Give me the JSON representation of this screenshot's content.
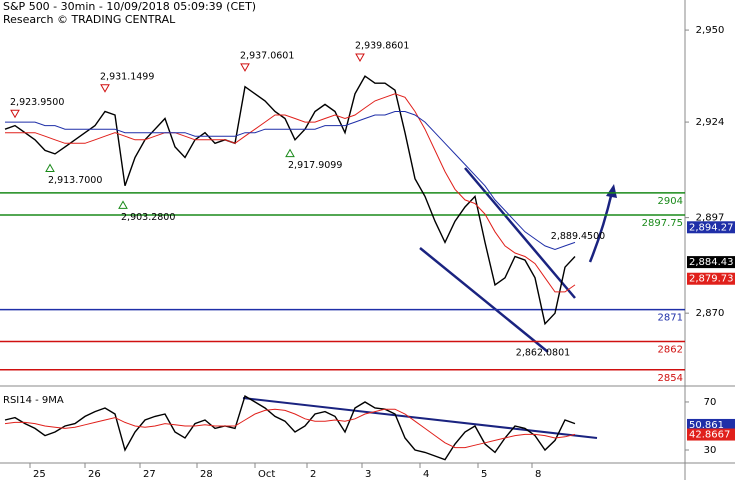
{
  "chart_data": [
    {
      "type": "line",
      "title": "S&P 500 - 30min - 10/09/2018 05:09:39 (CET)",
      "subtitle": "Research © TRADING CENTRAL",
      "x": [
        0,
        1,
        2,
        3,
        4,
        5,
        6,
        7,
        8,
        9,
        10,
        11,
        12,
        13,
        14,
        15,
        16,
        17,
        18,
        19,
        20,
        21,
        22,
        23,
        24,
        25,
        26,
        27,
        28,
        29,
        30,
        31,
        32,
        33,
        34,
        35,
        36,
        37,
        38,
        39,
        40,
        41,
        42,
        43,
        44,
        45,
        46,
        47,
        48,
        49,
        50,
        51,
        52,
        53,
        54,
        55,
        56,
        57
      ],
      "xlim": [
        -0.5,
        68
      ],
      "series": [
        {
          "color": "#000000",
          "values": [
            2922,
            2923,
            2921,
            2919,
            2916,
            2915,
            2917,
            2919,
            2921,
            2923,
            2927,
            2926,
            2906,
            2914,
            2919,
            2922,
            2925,
            2917,
            2914,
            2919,
            2921,
            2918,
            2919,
            2918,
            2934,
            2932,
            2930,
            2927,
            2925,
            2919,
            2922,
            2927,
            2929,
            2927,
            2921,
            2932,
            2937,
            2935,
            2935,
            2933,
            2921,
            2908,
            2903,
            2896,
            2890,
            2896,
            2900,
            2903,
            2890,
            2878,
            2880,
            2886,
            2885,
            2880,
            2867,
            2870,
            2883,
            2886
          ]
        },
        {
          "color": "#e0201b",
          "values": [
            2921,
            2921,
            2921,
            2921,
            2920,
            2919,
            2918,
            2918,
            2918,
            2919,
            2920,
            2921,
            2920,
            2919,
            2919,
            2920,
            2921,
            2921,
            2920,
            2919,
            2919,
            2919,
            2919,
            2918,
            2920,
            2922,
            2924,
            2926,
            2926,
            2925,
            2924,
            2924,
            2925,
            2926,
            2925,
            2926,
            2928,
            2930,
            2931,
            2932,
            2931,
            2927,
            2922,
            2916,
            2910,
            2905,
            2902,
            2901,
            2898,
            2893,
            2889,
            2887,
            2886,
            2884,
            2880,
            2876,
            2876,
            2878
          ]
        },
        {
          "color": "#1f2fa8",
          "values": [
            2924,
            2924,
            2924,
            2924,
            2923,
            2923,
            2922,
            2922,
            2922,
            2922,
            2922,
            2922,
            2921,
            2921,
            2921,
            2921,
            2921,
            2921,
            2921,
            2920,
            2920,
            2920,
            2920,
            2920,
            2921,
            2921,
            2922,
            2922,
            2922,
            2922,
            2922,
            2922,
            2923,
            2923,
            2923,
            2924,
            2925,
            2926,
            2926,
            2927,
            2927,
            2926,
            2924,
            2921,
            2918,
            2915,
            2912,
            2909,
            2906,
            2902,
            2899,
            2896,
            2893,
            2891,
            2889,
            2888,
            2889,
            2890
          ]
        }
      ],
      "ylim": [
        2849.7,
        2958.5
      ],
      "yticks": [
        {
          "value": 2950,
          "label": "2,950"
        },
        {
          "value": 2924,
          "label": "2,924"
        },
        {
          "value": 2897,
          "label": "2,897"
        },
        {
          "value": 2870,
          "label": "2,870"
        }
      ],
      "levels": [
        {
          "value": 2904,
          "color": "#1a8a1a"
        },
        {
          "value": 2897.75,
          "color": "#1a8a1a"
        },
        {
          "value": 2871,
          "color": "#1f2fa8"
        },
        {
          "value": 2862,
          "color": "#d01010"
        },
        {
          "value": 2854,
          "color": "#d01010"
        }
      ],
      "annotations": [
        {
          "x": 1,
          "value": 2923.95,
          "label": "2,923.9500",
          "color": "#d01010"
        },
        {
          "x": 10,
          "value": 2931.1499,
          "label": "2,931.1499",
          "color": "#d01010"
        },
        {
          "x": 24,
          "value": 2937.0601,
          "label": "2,937.0601",
          "color": "#d01010"
        },
        {
          "x": 35.5,
          "value": 2939.8601,
          "label": "2,939.8601",
          "color": "#d01010"
        },
        {
          "x": 4.5,
          "value": 2913.7,
          "label": "2,913.7000",
          "color": "#1a8a1a"
        },
        {
          "x": 11.8,
          "value": 2903.28,
          "label": "2,903.2800",
          "color": "#1a8a1a"
        },
        {
          "x": 28.5,
          "value": 2917.9099,
          "label": "2,917.9099",
          "color": "#1a8a1a"
        },
        {
          "x": 54,
          "value": 2862.0801,
          "label": "2,862.0801",
          "color": "#000000"
        },
        {
          "x": 57.5,
          "value": 2889.45,
          "label": "2,889.4500",
          "color": "#000000"
        }
      ],
      "price_tags": [
        {
          "value": 2894.27,
          "label": "2,894.27",
          "color": "#1f2fa8"
        },
        {
          "value": 2884.43,
          "label": "2,884.43",
          "color": "#000000"
        },
        {
          "value": 2879.73,
          "label": "2,879.73",
          "color": "#e0201b"
        }
      ]
    },
    {
      "type": "line",
      "title": "RSI14 - 9MA",
      "x": [
        0,
        1,
        2,
        3,
        4,
        5,
        6,
        7,
        8,
        9,
        10,
        11,
        12,
        13,
        14,
        15,
        16,
        17,
        18,
        19,
        20,
        21,
        22,
        23,
        24,
        25,
        26,
        27,
        28,
        29,
        30,
        31,
        32,
        33,
        34,
        35,
        36,
        37,
        38,
        39,
        40,
        41,
        42,
        43,
        44,
        45,
        46,
        47,
        48,
        49,
        50,
        51,
        52,
        53,
        54,
        55,
        56,
        57
      ],
      "xlim": [
        -0.5,
        68
      ],
      "xticks": [
        {
          "value": 2.5,
          "label": "25"
        },
        {
          "value": 8,
          "label": "26"
        },
        {
          "value": 13.5,
          "label": "27"
        },
        {
          "value": 19.2,
          "label": "28"
        },
        {
          "value": 25,
          "label": "Oct"
        },
        {
          "value": 30.2,
          "label": "2"
        },
        {
          "value": 35.7,
          "label": "3"
        },
        {
          "value": 41.5,
          "label": "4"
        },
        {
          "value": 47.3,
          "label": "5"
        },
        {
          "value": 52.7,
          "label": "8"
        }
      ],
      "series": [
        {
          "color": "#000000",
          "values": [
            55,
            57,
            52,
            48,
            42,
            45,
            50,
            52,
            58,
            62,
            65,
            60,
            30,
            45,
            55,
            58,
            60,
            45,
            40,
            52,
            55,
            48,
            50,
            48,
            75,
            70,
            65,
            58,
            54,
            45,
            50,
            60,
            62,
            58,
            45,
            65,
            70,
            65,
            64,
            60,
            40,
            30,
            28,
            25,
            22,
            35,
            45,
            50,
            35,
            28,
            40,
            50,
            48,
            42,
            30,
            38,
            55,
            52
          ]
        },
        {
          "color": "#e0201b",
          "values": [
            52,
            53,
            53,
            52,
            50,
            49,
            48,
            49,
            51,
            53,
            55,
            57,
            53,
            50,
            49,
            50,
            52,
            51,
            50,
            50,
            51,
            50,
            50,
            50,
            55,
            60,
            63,
            64,
            63,
            60,
            56,
            54,
            54,
            55,
            54,
            56,
            60,
            62,
            64,
            64,
            60,
            54,
            48,
            42,
            36,
            32,
            32,
            34,
            36,
            38,
            40,
            42,
            43,
            43,
            42,
            40,
            41,
            43
          ]
        }
      ],
      "ylim": [
        20,
        78.3
      ],
      "yticks": [
        70,
        30
      ],
      "value_tags": [
        {
          "value": 50.861,
          "color": "#1f2fa8"
        },
        {
          "value": 42.8667,
          "color": "#e0201b"
        }
      ]
    }
  ]
}
